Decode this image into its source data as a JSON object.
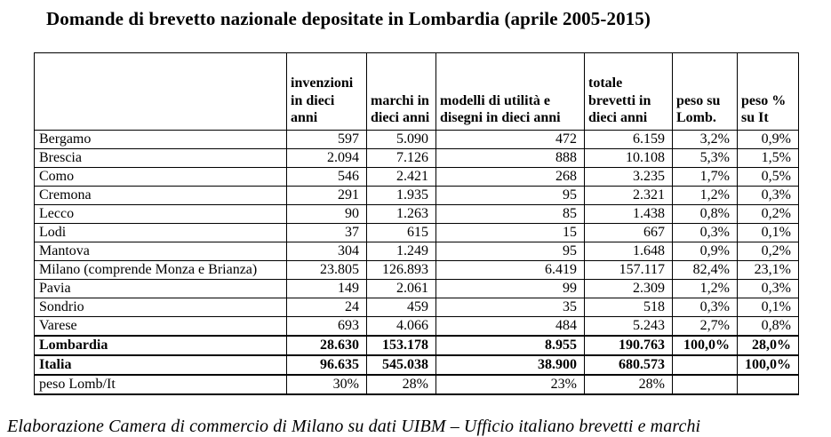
{
  "title": "Domande di brevetto nazionale depositate in Lombardia (aprile 2005-2015)",
  "source": "Elaborazione Camera di commercio di Milano su dati UIBM – Ufficio italiano brevetti e marchi",
  "table": {
    "headers": [
      "",
      "invenzioni in dieci anni",
      "marchi in dieci anni",
      "modelli di utilità e disegni in dieci anni",
      "totale brevetti in dieci anni",
      "peso su Lomb.",
      "peso % su It"
    ],
    "rows": [
      {
        "label": "Bergamo",
        "values": [
          "597",
          "5.090",
          "472",
          "6.159",
          "3,2%",
          "0,9%"
        ],
        "bold": false,
        "separator": false
      },
      {
        "label": "Brescia",
        "values": [
          "2.094",
          "7.126",
          "888",
          "10.108",
          "5,3%",
          "1,5%"
        ],
        "bold": false,
        "separator": false
      },
      {
        "label": "Como",
        "values": [
          "546",
          "2.421",
          "268",
          "3.235",
          "1,7%",
          "0,5%"
        ],
        "bold": false,
        "separator": false
      },
      {
        "label": "Cremona",
        "values": [
          "291",
          "1.935",
          "95",
          "2.321",
          "1,2%",
          "0,3%"
        ],
        "bold": false,
        "separator": false
      },
      {
        "label": "Lecco",
        "values": [
          "90",
          "1.263",
          "85",
          "1.438",
          "0,8%",
          "0,2%"
        ],
        "bold": false,
        "separator": false
      },
      {
        "label": "Lodi",
        "values": [
          "37",
          "615",
          "15",
          "667",
          "0,3%",
          "0,1%"
        ],
        "bold": false,
        "separator": false
      },
      {
        "label": "Mantova",
        "values": [
          "304",
          "1.249",
          "95",
          "1.648",
          "0,9%",
          "0,2%"
        ],
        "bold": false,
        "separator": false
      },
      {
        "label": "Milano (comprende Monza e Brianza)",
        "values": [
          "23.805",
          "126.893",
          "6.419",
          "157.117",
          "82,4%",
          "23,1%"
        ],
        "bold": false,
        "separator": false
      },
      {
        "label": "Pavia",
        "values": [
          "149",
          "2.061",
          "99",
          "2.309",
          "1,2%",
          "0,3%"
        ],
        "bold": false,
        "separator": false
      },
      {
        "label": "Sondrio",
        "values": [
          "24",
          "459",
          "35",
          "518",
          "0,3%",
          "0,1%"
        ],
        "bold": false,
        "separator": false
      },
      {
        "label": "Varese",
        "values": [
          "693",
          "4.066",
          "484",
          "5.243",
          "2,7%",
          "0,8%"
        ],
        "bold": false,
        "separator": false
      },
      {
        "label": "Lombardia",
        "values": [
          "28.630",
          "153.178",
          "8.955",
          "190.763",
          "100,0%",
          "28,0%"
        ],
        "bold": true,
        "separator": true
      },
      {
        "label": "Italia",
        "values": [
          "96.635",
          "545.038",
          "38.900",
          "680.573",
          "",
          "100,0%"
        ],
        "bold": true,
        "separator": true
      },
      {
        "label": "peso Lomb/It",
        "values": [
          "30%",
          "28%",
          "23%",
          "28%",
          "",
          ""
        ],
        "bold": false,
        "separator": true
      }
    ]
  }
}
